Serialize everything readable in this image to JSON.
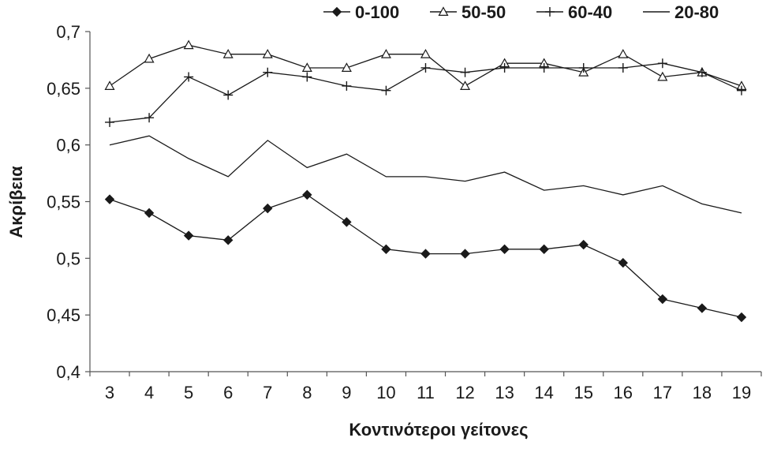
{
  "chart_data": {
    "type": "line",
    "title": "",
    "xlabel": "Κοντινότεροι γείτονες",
    "ylabel": "Ακρίβεια",
    "categories": [
      "3",
      "4",
      "5",
      "6",
      "7",
      "8",
      "9",
      "10",
      "11",
      "12",
      "13",
      "14",
      "15",
      "16",
      "17",
      "18",
      "19"
    ],
    "ylim": [
      0.4,
      0.7
    ],
    "yticks": [
      "0,4",
      "0,45",
      "0,5",
      "0,55",
      "0,6",
      "0,65",
      "0,7"
    ],
    "ytick_values": [
      0.4,
      0.45,
      0.5,
      0.55,
      0.6,
      0.65,
      0.7
    ],
    "grid": false,
    "legend_position": "top",
    "series": [
      {
        "name": "0-100",
        "marker": "filled-diamond",
        "color": "#1a1a1a",
        "values": [
          0.552,
          0.54,
          0.52,
          0.516,
          0.544,
          0.556,
          0.532,
          0.508,
          0.504,
          0.504,
          0.508,
          0.508,
          0.512,
          0.496,
          0.464,
          0.456,
          0.448
        ]
      },
      {
        "name": "50-50",
        "marker": "open-triangle",
        "color": "#1a1a1a",
        "values": [
          0.652,
          0.676,
          0.688,
          0.68,
          0.68,
          0.668,
          0.668,
          0.68,
          0.68,
          0.652,
          0.672,
          0.672,
          0.664,
          0.68,
          0.66,
          0.664,
          0.652
        ]
      },
      {
        "name": "60-40",
        "marker": "plus",
        "color": "#1a1a1a",
        "values": [
          0.62,
          0.624,
          0.66,
          0.644,
          0.664,
          0.66,
          0.652,
          0.648,
          0.668,
          0.664,
          0.668,
          0.668,
          0.668,
          0.668,
          0.672,
          0.664,
          0.648
        ]
      },
      {
        "name": "20-80",
        "marker": "none",
        "color": "#1a1a1a",
        "values": [
          0.6,
          0.608,
          0.588,
          0.572,
          0.604,
          0.58,
          0.592,
          0.572,
          0.572,
          0.568,
          0.576,
          0.56,
          0.564,
          0.556,
          0.564,
          0.548,
          0.54
        ]
      }
    ]
  }
}
